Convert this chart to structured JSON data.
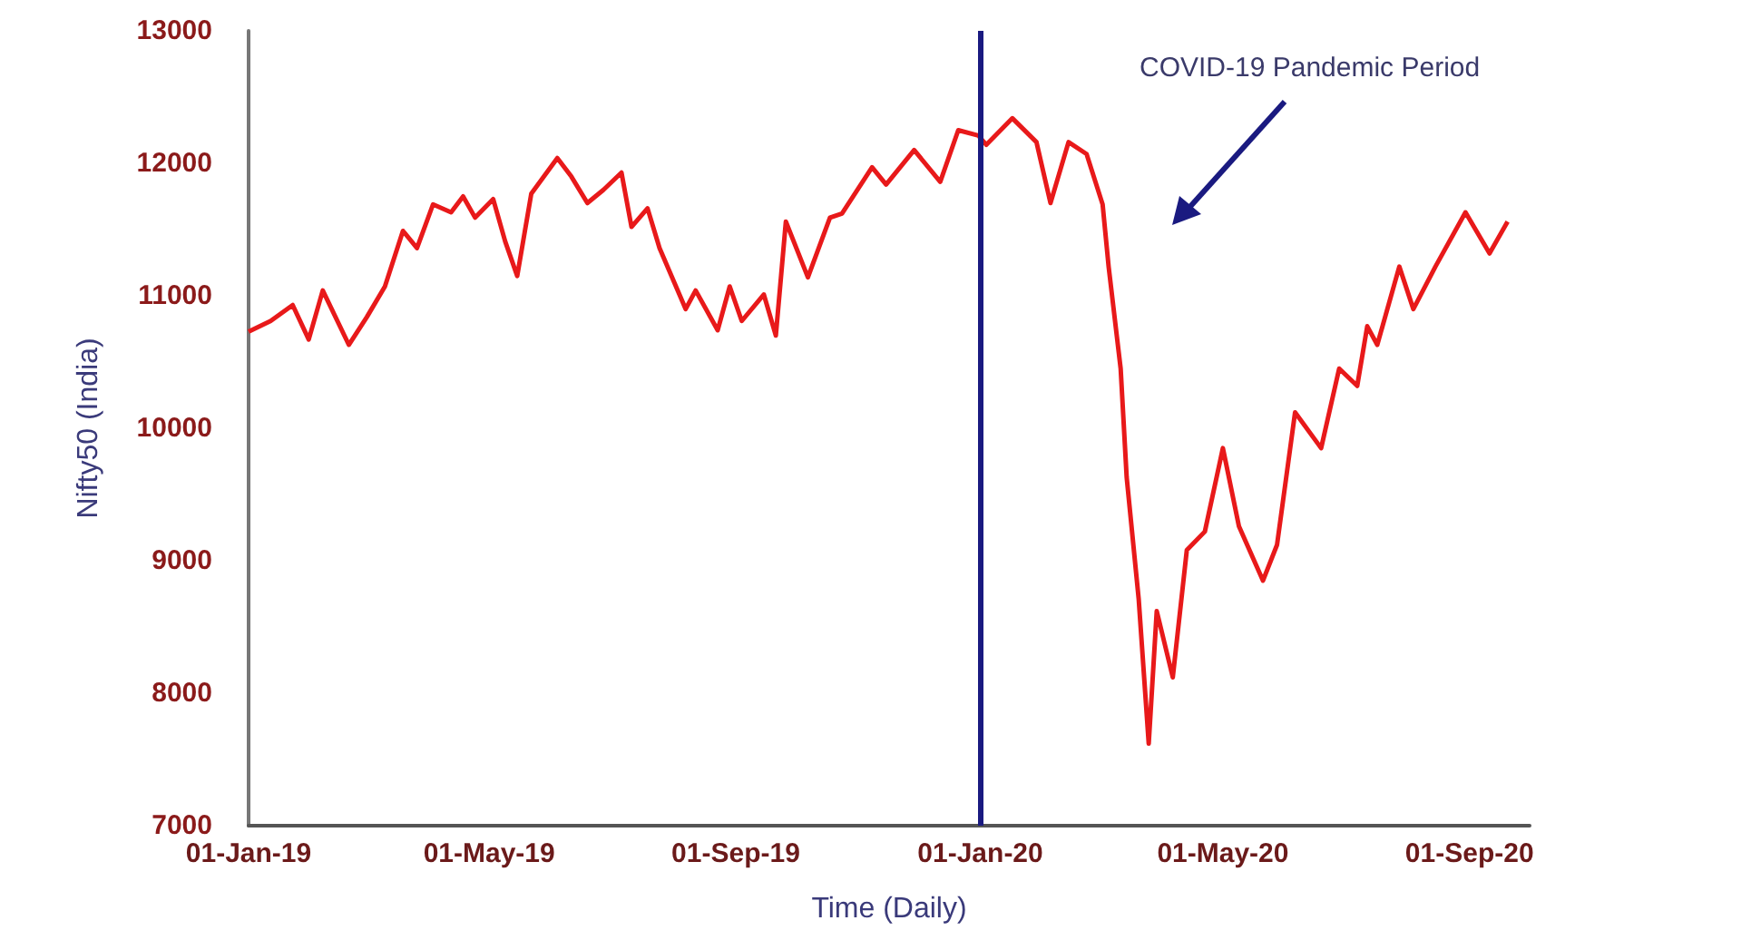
{
  "chart_data": {
    "type": "line",
    "xlabel": "Time (Daily)",
    "ylabel": "Nifty50 (India)",
    "annotations": [
      "COVID-19 Pandemic Period"
    ],
    "x": [
      "2019-01-01",
      "2019-01-12",
      "2019-01-23",
      "2019-01-31",
      "2019-02-07",
      "2019-02-20",
      "2019-03-01",
      "2019-03-10",
      "2019-03-19",
      "2019-03-26",
      "2019-04-03",
      "2019-04-12",
      "2019-04-18",
      "2019-04-24",
      "2019-05-03",
      "2019-05-09",
      "2019-05-15",
      "2019-05-22",
      "2019-06-04",
      "2019-06-11",
      "2019-06-19",
      "2019-06-27",
      "2019-07-06",
      "2019-07-11",
      "2019-07-19",
      "2019-07-25",
      "2019-08-07",
      "2019-08-12",
      "2019-08-23",
      "2019-08-29",
      "2019-09-04",
      "2019-09-15",
      "2019-09-21",
      "2019-09-26",
      "2019-10-07",
      "2019-10-18",
      "2019-10-24",
      "2019-11-08",
      "2019-11-15",
      "2019-11-29",
      "2019-12-12",
      "2019-12-21",
      "2019-12-31",
      "2020-01-04",
      "2020-01-17",
      "2020-01-29",
      "2020-02-05",
      "2020-02-14",
      "2020-02-23",
      "2020-03-02",
      "2020-03-05",
      "2020-03-11",
      "2020-03-14",
      "2020-03-20",
      "2020-03-25",
      "2020-03-29",
      "2020-04-06",
      "2020-04-13",
      "2020-04-22",
      "2020-05-01",
      "2020-05-09",
      "2020-05-21",
      "2020-05-28",
      "2020-06-06",
      "2020-06-19",
      "2020-06-28",
      "2020-07-07",
      "2020-07-12",
      "2020-07-17",
      "2020-07-28",
      "2020-08-04",
      "2020-08-15",
      "2020-08-30",
      "2020-09-11",
      "2020-09-20"
    ],
    "series": [
      {
        "color": "#e8191a",
        "values": [
          10730,
          10810,
          10930,
          10670,
          11040,
          10630,
          10840,
          11070,
          11490,
          11360,
          11690,
          11630,
          11750,
          11590,
          11730,
          11410,
          11150,
          11770,
          12040,
          11900,
          11700,
          11800,
          11930,
          11520,
          11660,
          11360,
          10900,
          11040,
          10740,
          11070,
          10810,
          11010,
          10700,
          11560,
          11140,
          11590,
          11620,
          11970,
          11840,
          12100,
          11860,
          12250,
          12210,
          12140,
          12340,
          12160,
          11700,
          12160,
          12070,
          11690,
          11220,
          10450,
          9630,
          8710,
          7620,
          8620,
          8120,
          9080,
          9220,
          9850,
          9260,
          8850,
          9120,
          10120,
          9850,
          10450,
          10320,
          10770,
          10630,
          11220,
          10900,
          11220,
          11630,
          11320,
          11560
        ]
      }
    ],
    "xlim": [
      "2019-01-01",
      "2020-10-01"
    ],
    "xticks": [
      {
        "value": "2019-01-01",
        "label": "01-Jan-19"
      },
      {
        "value": "2019-05-01",
        "label": "01-May-19"
      },
      {
        "value": "2019-09-01",
        "label": "01-Sep-19"
      },
      {
        "value": "2020-01-01",
        "label": "01-Jan-20"
      },
      {
        "value": "2020-05-01",
        "label": "01-May-20"
      },
      {
        "value": "2020-09-01",
        "label": "01-Sep-20"
      }
    ],
    "ylim": [
      7000,
      13000
    ],
    "yticks": [
      7000,
      8000,
      9000,
      10000,
      11000,
      12000,
      13000
    ],
    "ref_lines": [
      {
        "axis": "x",
        "value": "2020-01-01",
        "color": "#1a1a80",
        "line_style": "solid"
      }
    ],
    "marker": "none",
    "line_style": "solid"
  }
}
